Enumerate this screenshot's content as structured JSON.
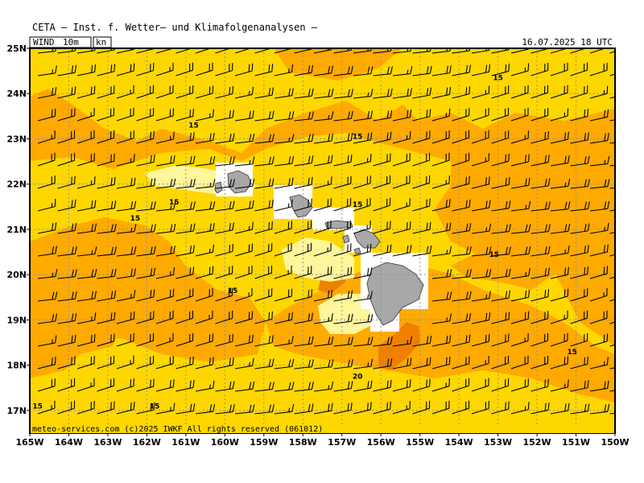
{
  "header": {
    "title": "CETA — Inst. f. Wetter— und Klimafolgenanalysen —"
  },
  "panel": {
    "variable": "WIND",
    "level": "10m",
    "unit": "kn",
    "valid_time": "16.07.2025 18 UTC",
    "credit": "meteo-services.com  (c)2025 IWKF  All rights reserved (061012)"
  },
  "map": {
    "lon_range": [
      -165,
      -150
    ],
    "lat_range": [
      16.5,
      25
    ],
    "lon_ticks": [
      "165W",
      "164W",
      "163W",
      "162W",
      "161W",
      "160W",
      "159W",
      "158W",
      "157W",
      "156W",
      "155W",
      "154W",
      "153W",
      "152W",
      "151W",
      "150W"
    ],
    "lat_ticks": [
      "25N",
      "24N",
      "23N",
      "22N",
      "21N",
      "20N",
      "19N",
      "18N",
      "17N"
    ],
    "contour_labels": [
      {
        "text": "15",
        "lon": -153.0,
        "lat": 24.35
      },
      {
        "text": "15",
        "lon": -160.8,
        "lat": 23.3
      },
      {
        "text": "15",
        "lon": -156.6,
        "lat": 23.05
      },
      {
        "text": "15",
        "lon": -161.3,
        "lat": 21.6
      },
      {
        "text": "15",
        "lon": -156.6,
        "lat": 21.55
      },
      {
        "text": "15",
        "lon": -162.3,
        "lat": 21.25
      },
      {
        "text": "15",
        "lon": -153.1,
        "lat": 20.45
      },
      {
        "text": "15",
        "lon": -159.8,
        "lat": 19.65
      },
      {
        "text": "15",
        "lon": -151.1,
        "lat": 18.3
      },
      {
        "text": "20",
        "lon": -156.6,
        "lat": 17.75
      },
      {
        "text": "15",
        "lon": -164.8,
        "lat": 17.1
      },
      {
        "text": "15",
        "lon": -161.8,
        "lat": 17.1
      }
    ],
    "colors": {
      "band_10_15": "#ffd700",
      "band_15_20": "#ffaa00",
      "band_20_25": "#f08000",
      "band_5_10": "#fff59a",
      "band_0_5": "#ffffc8",
      "land": "#a8a8a8"
    }
  }
}
